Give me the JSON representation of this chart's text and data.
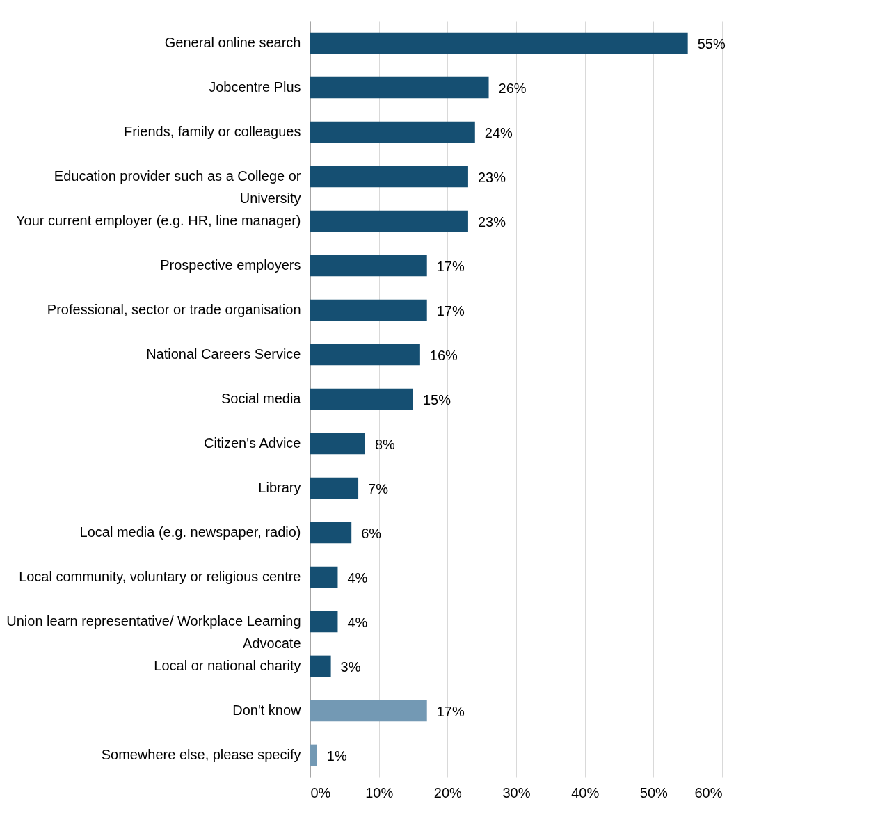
{
  "chart_data": {
    "type": "bar",
    "orientation": "horizontal",
    "categories": [
      "General online search",
      "Jobcentre Plus",
      "Friends, family or colleagues",
      "Education provider such as a College or University",
      "Your current employer (e.g. HR, line manager)",
      "Prospective employers",
      "Professional, sector or trade organisation",
      "National Careers Service",
      "Social media",
      "Citizen's Advice",
      "Library",
      "Local media (e.g. newspaper, radio)",
      "Local community, voluntary or religious centre",
      "Union learn representative/ Workplace Learning Advocate",
      "Local or national charity",
      "Don't know",
      "Somewhere else, please specify"
    ],
    "values": [
      55,
      26,
      24,
      23,
      23,
      17,
      17,
      16,
      15,
      8,
      7,
      6,
      4,
      4,
      3,
      17,
      1
    ],
    "value_labels": [
      "55%",
      "26%",
      "24%",
      "23%",
      "23%",
      "17%",
      "17%",
      "16%",
      "15%",
      "8%",
      "7%",
      "6%",
      "4%",
      "4%",
      "3%",
      "17%",
      "1%"
    ],
    "colors": [
      "#154f72",
      "#154f72",
      "#154f72",
      "#154f72",
      "#154f72",
      "#154f72",
      "#154f72",
      "#154f72",
      "#154f72",
      "#154f72",
      "#154f72",
      "#154f72",
      "#154f72",
      "#154f72",
      "#154f72",
      "#7399b4",
      "#7399b4"
    ],
    "xlim": [
      0,
      60
    ],
    "xticks": [
      {
        "value": 0,
        "label": "0%"
      },
      {
        "value": 10,
        "label": "10%"
      },
      {
        "value": 20,
        "label": "20%"
      },
      {
        "value": 30,
        "label": "30%"
      },
      {
        "value": 40,
        "label": "40%"
      },
      {
        "value": 50,
        "label": "50%"
      },
      {
        "value": 60,
        "label": "60%"
      }
    ],
    "grid": "x"
  }
}
